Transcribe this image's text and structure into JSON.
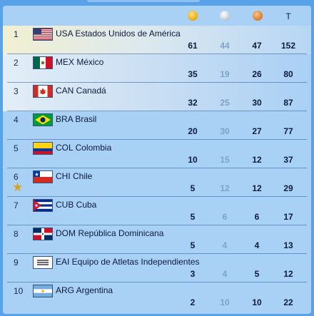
{
  "header": {
    "gold_icon": "gold-medal-icon",
    "silver_icon": "silver-medal-icon",
    "bronze_icon": "bronze-medal-icon",
    "total_label": "T"
  },
  "rows": [
    {
      "rank": "1",
      "flag": "us",
      "name": "USA Estados Unidos de América",
      "gold": "61",
      "silver": "44",
      "bronze": "47",
      "total": "152"
    },
    {
      "rank": "2",
      "flag": "mx",
      "name": "MEX México",
      "gold": "35",
      "silver": "19",
      "bronze": "26",
      "total": "80"
    },
    {
      "rank": "3",
      "flag": "ca",
      "name": "CAN Canadá",
      "gold": "32",
      "silver": "25",
      "bronze": "30",
      "total": "87"
    },
    {
      "rank": "4",
      "flag": "br",
      "name": "BRA Brasil",
      "gold": "20",
      "silver": "30",
      "bronze": "27",
      "total": "77"
    },
    {
      "rank": "5",
      "flag": "co",
      "name": "COL Colombia",
      "gold": "10",
      "silver": "15",
      "bronze": "12",
      "total": "37"
    },
    {
      "rank": "6",
      "flag": "cl",
      "name": "CHI Chile",
      "gold": "5",
      "silver": "12",
      "bronze": "12",
      "total": "29",
      "host_star": "star-icon"
    },
    {
      "rank": "7",
      "flag": "cu",
      "name": "CUB Cuba",
      "gold": "5",
      "silver": "6",
      "bronze": "6",
      "total": "17"
    },
    {
      "rank": "8",
      "flag": "do",
      "name": "DOM República Dominicana",
      "gold": "5",
      "silver": "4",
      "bronze": "4",
      "total": "13"
    },
    {
      "rank": "9",
      "flag": "eai",
      "name": "EAI Equipo de Atletas Independientes",
      "gold": "3",
      "silver": "4",
      "bronze": "5",
      "total": "12"
    },
    {
      "rank": "10",
      "flag": "ar",
      "name": "ARG Argentina",
      "gold": "2",
      "silver": "10",
      "bronze": "10",
      "total": "22"
    }
  ]
}
